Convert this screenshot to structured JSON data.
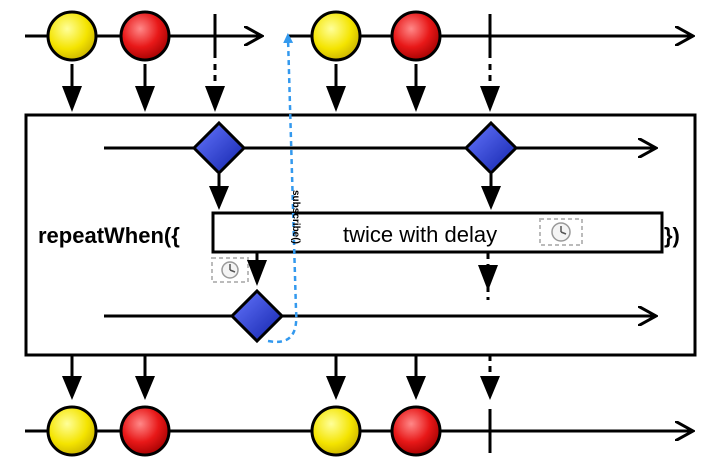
{
  "operator": {
    "prefix": "repeatWhen({",
    "suffix": "})",
    "inner_label": "twice with delay",
    "inner_icon": "clock-icon"
  },
  "annotation": {
    "label": "subscribe()",
    "color": "#3399ee"
  },
  "colors": {
    "yellow": "#ffee00",
    "red": "#ee1111",
    "diamond": "#2233cc"
  },
  "source_timeline": {
    "items": [
      "yellow",
      "red",
      "complete",
      "yellow",
      "red",
      "complete"
    ]
  },
  "result_timeline": {
    "items": [
      "yellow",
      "red",
      "yellow",
      "red",
      "complete"
    ]
  }
}
